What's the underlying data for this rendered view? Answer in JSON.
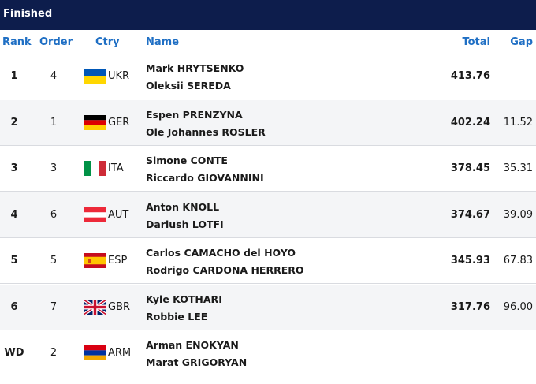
{
  "header": {
    "title": "Finished"
  },
  "columns": {
    "rank": "Rank",
    "order": "Order",
    "ctry": "Ctry",
    "name": "Name",
    "total": "Total",
    "gap": "Gap"
  },
  "rows": [
    {
      "rank": "1",
      "order": "4",
      "ctry": "UKR",
      "flag": "flag-ukr",
      "name1": "Mark HRYTSENKO",
      "name2": "Oleksii SEREDA",
      "total": "413.76",
      "gap": ""
    },
    {
      "rank": "2",
      "order": "1",
      "ctry": "GER",
      "flag": "flag-ger",
      "name1": "Espen PRENZYNA",
      "name2": "Ole Johannes ROSLER",
      "total": "402.24",
      "gap": "11.52"
    },
    {
      "rank": "3",
      "order": "3",
      "ctry": "ITA",
      "flag": "flag-ita",
      "name1": "Simone CONTE",
      "name2": "Riccardo GIOVANNINI",
      "total": "378.45",
      "gap": "35.31"
    },
    {
      "rank": "4",
      "order": "6",
      "ctry": "AUT",
      "flag": "flag-aut",
      "name1": "Anton KNOLL",
      "name2": "Dariush LOTFI",
      "total": "374.67",
      "gap": "39.09"
    },
    {
      "rank": "5",
      "order": "5",
      "ctry": "ESP",
      "flag": "flag-esp",
      "name1": "Carlos CAMACHO del HOYO",
      "name2": "Rodrigo CARDONA HERRERO",
      "total": "345.93",
      "gap": "67.83"
    },
    {
      "rank": "6",
      "order": "7",
      "ctry": "GBR",
      "flag": "flag-gbr",
      "name1": "Kyle KOTHARI",
      "name2": "Robbie LEE",
      "total": "317.76",
      "gap": "96.00"
    },
    {
      "rank": "WD",
      "order": "2",
      "ctry": "ARM",
      "flag": "flag-arm",
      "name1": "Arman ENOKYAN",
      "name2": "Marat GRIGORYAN",
      "total": "",
      "gap": ""
    }
  ],
  "colors": {
    "topbar": "#0d1d4c",
    "header_text": "#1f6fc4"
  }
}
